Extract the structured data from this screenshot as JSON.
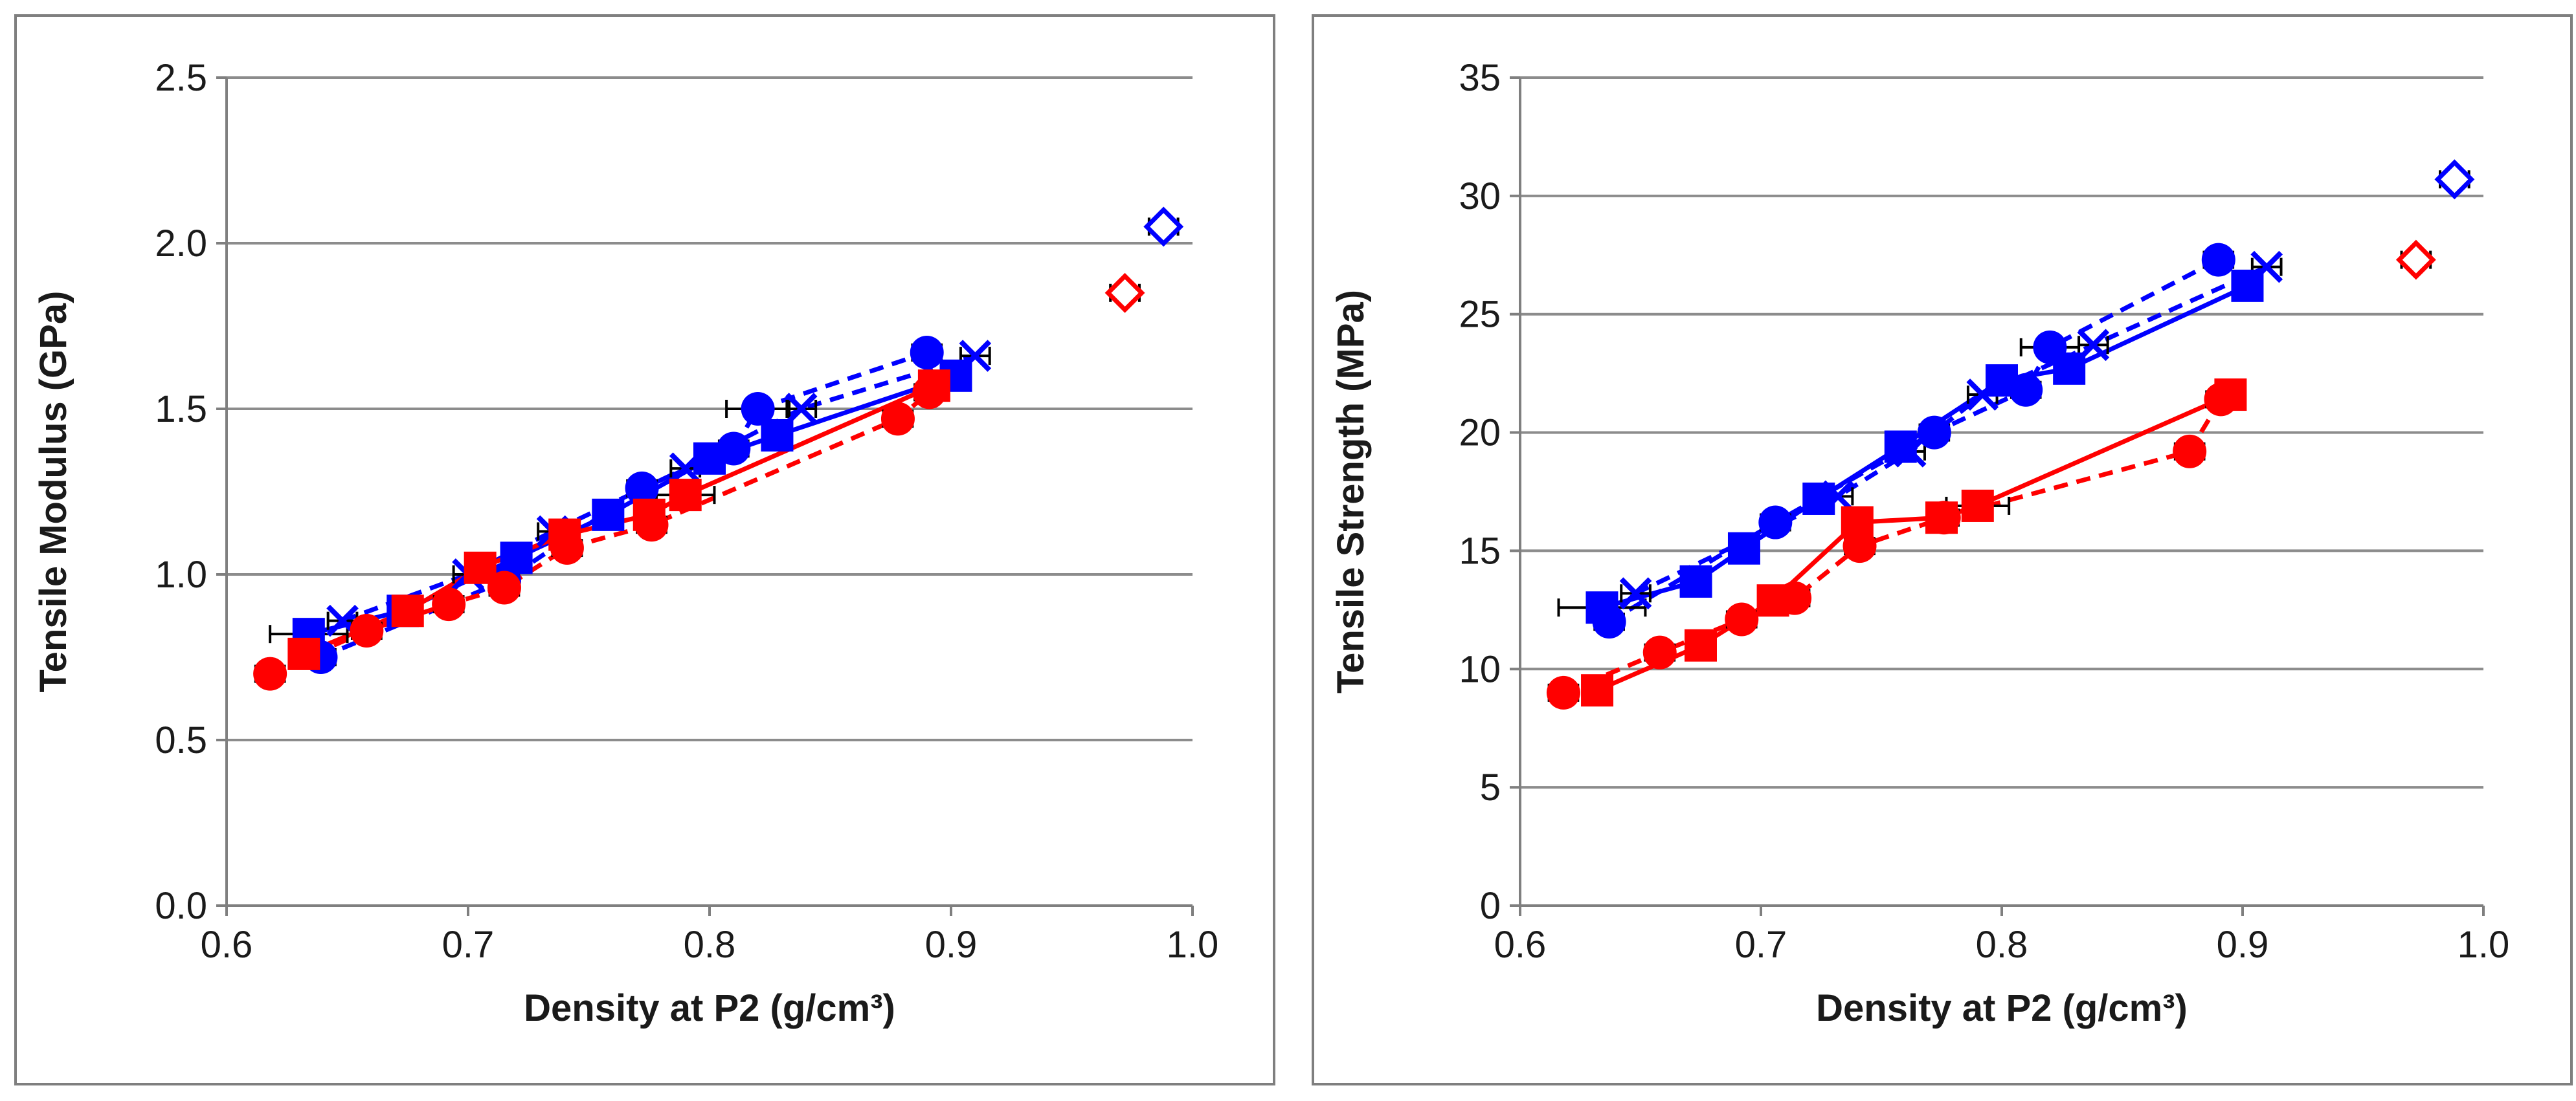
{
  "chart_data": [
    {
      "type": "scatter",
      "title": "",
      "xlabel": "Density at P2 (g/cm³)",
      "ylabel": "Tensile Modulus (GPa)",
      "xlim": [
        0.6,
        1.0
      ],
      "ylim": [
        0.0,
        2.5
      ],
      "xticks": [
        "0.6",
        "0.7",
        "0.8",
        "0.9",
        "1.0"
      ],
      "yticks": [
        "0.0",
        "0.5",
        "1.0",
        "1.5",
        "2.0",
        "2.5"
      ],
      "grid": "horizontal",
      "series": [
        {
          "name": "blue circles dashed",
          "color": "#0000ff",
          "marker": "circle",
          "line": "dashed",
          "points": [
            [
              0.639,
              0.75,
              0.006
            ],
            [
              0.715,
              0.98,
              0.006
            ],
            [
              0.772,
              1.26,
              0.006
            ],
            [
              0.81,
              1.38,
              0.006
            ],
            [
              0.82,
              1.5,
              0.013
            ],
            [
              0.89,
              1.67,
              0.006
            ]
          ]
        },
        {
          "name": "blue squares solid",
          "color": "#0000ff",
          "marker": "square",
          "line": "solid",
          "points": [
            [
              0.634,
              0.82,
              0.016
            ],
            [
              0.673,
              0.89,
              0.006
            ],
            [
              0.72,
              1.05,
              0.006
            ],
            [
              0.758,
              1.18,
              0.006
            ],
            [
              0.8,
              1.35,
              0.006
            ],
            [
              0.828,
              1.42,
              0.006
            ],
            [
              0.902,
              1.6,
              0.006
            ]
          ]
        },
        {
          "name": "blue crosses dashed",
          "color": "#0000ff",
          "marker": "x",
          "line": "dashed",
          "points": [
            [
              0.648,
              0.86,
              0.006
            ],
            [
              0.7,
              1.0,
              0.006
            ],
            [
              0.735,
              1.13,
              0.006
            ],
            [
              0.79,
              1.32,
              0.006
            ],
            [
              0.838,
              1.5,
              0.006
            ],
            [
              0.91,
              1.66,
              0.006
            ]
          ]
        },
        {
          "name": "red circles dashed",
          "color": "#ff0000",
          "marker": "circle",
          "line": "dashed",
          "points": [
            [
              0.618,
              0.7,
              0.006
            ],
            [
              0.658,
              0.83,
              0.006
            ],
            [
              0.692,
              0.91,
              0.006
            ],
            [
              0.715,
              0.96,
              0.006
            ],
            [
              0.741,
              1.08,
              0.006
            ],
            [
              0.776,
              1.15,
              0.006
            ],
            [
              0.878,
              1.47,
              0.006
            ],
            [
              0.891,
              1.55,
              0.006
            ]
          ]
        },
        {
          "name": "red squares solid",
          "color": "#ff0000",
          "marker": "square",
          "line": "solid",
          "points": [
            [
              0.632,
              0.76,
              0.006
            ],
            [
              0.675,
              0.89,
              0.006
            ],
            [
              0.705,
              1.02,
              0.006
            ],
            [
              0.74,
              1.12,
              0.006
            ],
            [
              0.775,
              1.18,
              0.006
            ],
            [
              0.79,
              1.24,
              0.012
            ],
            [
              0.893,
              1.57,
              0.006
            ]
          ]
        },
        {
          "name": "blue diamond",
          "color": "#0000ff",
          "marker": "diamond",
          "line": "none",
          "points": [
            [
              0.988,
              2.05,
              0.006
            ]
          ]
        },
        {
          "name": "red diamond",
          "color": "#ff0000",
          "marker": "diamond",
          "line": "none",
          "points": [
            [
              0.972,
              1.85,
              0.006
            ]
          ]
        }
      ]
    },
    {
      "type": "scatter",
      "title": "",
      "xlabel": "Density at P2 (g/cm³)",
      "ylabel": "Tensile Strength (MPa)",
      "xlim": [
        0.6,
        1.0
      ],
      "ylim": [
        0,
        35
      ],
      "xticks": [
        "0.6",
        "0.7",
        "0.8",
        "0.9",
        "1.0"
      ],
      "yticks": [
        "0",
        "5",
        "10",
        "15",
        "20",
        "25",
        "30",
        "35"
      ],
      "grid": "horizontal",
      "series": [
        {
          "name": "blue circles dashed",
          "color": "#0000ff",
          "marker": "circle",
          "line": "dashed",
          "points": [
            [
              0.637,
              12.0,
              0.006
            ],
            [
              0.706,
              16.2,
              0.006
            ],
            [
              0.772,
              20.0,
              0.006
            ],
            [
              0.81,
              21.8,
              0.006
            ],
            [
              0.82,
              23.6,
              0.012
            ],
            [
              0.89,
              27.3,
              0.006
            ]
          ]
        },
        {
          "name": "blue squares solid",
          "color": "#0000ff",
          "marker": "square",
          "line": "solid",
          "points": [
            [
              0.634,
              12.6,
              0.018
            ],
            [
              0.673,
              13.7,
              0.006
            ],
            [
              0.693,
              15.1,
              0.006
            ],
            [
              0.724,
              17.2,
              0.006
            ],
            [
              0.758,
              19.4,
              0.006
            ],
            [
              0.8,
              22.2,
              0.006
            ],
            [
              0.828,
              22.7,
              0.006
            ],
            [
              0.902,
              26.2,
              0.006
            ]
          ]
        },
        {
          "name": "blue crosses dashed",
          "color": "#0000ff",
          "marker": "x",
          "line": "dashed",
          "points": [
            [
              0.648,
              13.2,
              0.006
            ],
            [
              0.732,
              17.3,
              0.006
            ],
            [
              0.762,
              19.2,
              0.006
            ],
            [
              0.792,
              21.6,
              0.006
            ],
            [
              0.838,
              23.7,
              0.006
            ],
            [
              0.91,
              27.0,
              0.006
            ]
          ]
        },
        {
          "name": "red circles dashed",
          "color": "#ff0000",
          "marker": "circle",
          "line": "dashed",
          "points": [
            [
              0.618,
              9.0,
              0.006
            ],
            [
              0.658,
              10.7,
              0.006
            ],
            [
              0.692,
              12.1,
              0.006
            ],
            [
              0.714,
              13.0,
              0.006
            ],
            [
              0.741,
              15.2,
              0.006
            ],
            [
              0.776,
              16.4,
              0.006
            ],
            [
              0.878,
              19.2,
              0.006
            ],
            [
              0.891,
              21.4,
              0.006
            ]
          ]
        },
        {
          "name": "red squares solid",
          "color": "#ff0000",
          "marker": "square",
          "line": "solid",
          "points": [
            [
              0.632,
              9.1,
              0.006
            ],
            [
              0.675,
              11.0,
              0.006
            ],
            [
              0.705,
              12.9,
              0.006
            ],
            [
              0.74,
              16.2,
              0.006
            ],
            [
              0.775,
              16.4,
              0.006
            ],
            [
              0.79,
              16.9,
              0.013
            ],
            [
              0.895,
              21.6,
              0.006
            ]
          ]
        },
        {
          "name": "blue diamond",
          "color": "#0000ff",
          "marker": "diamond",
          "line": "none",
          "points": [
            [
              0.988,
              30.7,
              0.006
            ]
          ]
        },
        {
          "name": "red diamond",
          "color": "#ff0000",
          "marker": "diamond",
          "line": "none",
          "points": [
            [
              0.972,
              27.3,
              0.006
            ]
          ]
        }
      ]
    }
  ]
}
